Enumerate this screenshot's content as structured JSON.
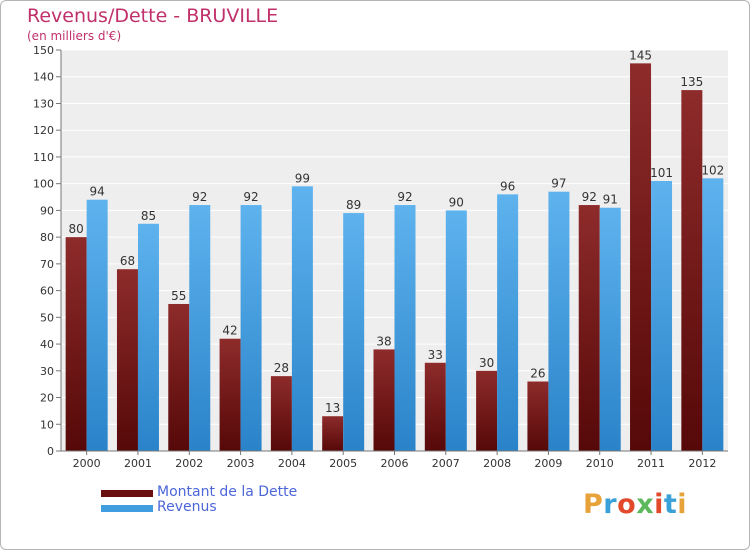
{
  "title": "Revenus/Dette - BRUVILLE",
  "subtitle": "(en milliers d'€)",
  "logo": "Proxiti",
  "chart_data": {
    "type": "bar",
    "categories": [
      "2000",
      "2001",
      "2002",
      "2003",
      "2004",
      "2005",
      "2006",
      "2007",
      "2008",
      "2009",
      "2010",
      "2011",
      "2012"
    ],
    "series": [
      {
        "name": "Montant de la Dette",
        "color": "#7a1a1a",
        "values": [
          80,
          68,
          55,
          42,
          28,
          13,
          38,
          33,
          30,
          26,
          92,
          145,
          135
        ]
      },
      {
        "name": "Revenus",
        "color": "#3f9de0",
        "values": [
          94,
          85,
          92,
          92,
          99,
          89,
          92,
          90,
          96,
          97,
          91,
          101,
          102
        ]
      }
    ],
    "ylim": [
      0,
      150
    ],
    "yticks": [
      0,
      10,
      20,
      30,
      40,
      50,
      60,
      70,
      80,
      90,
      100,
      110,
      120,
      130,
      140,
      150
    ],
    "grid": true,
    "legend": "bottom-left"
  }
}
